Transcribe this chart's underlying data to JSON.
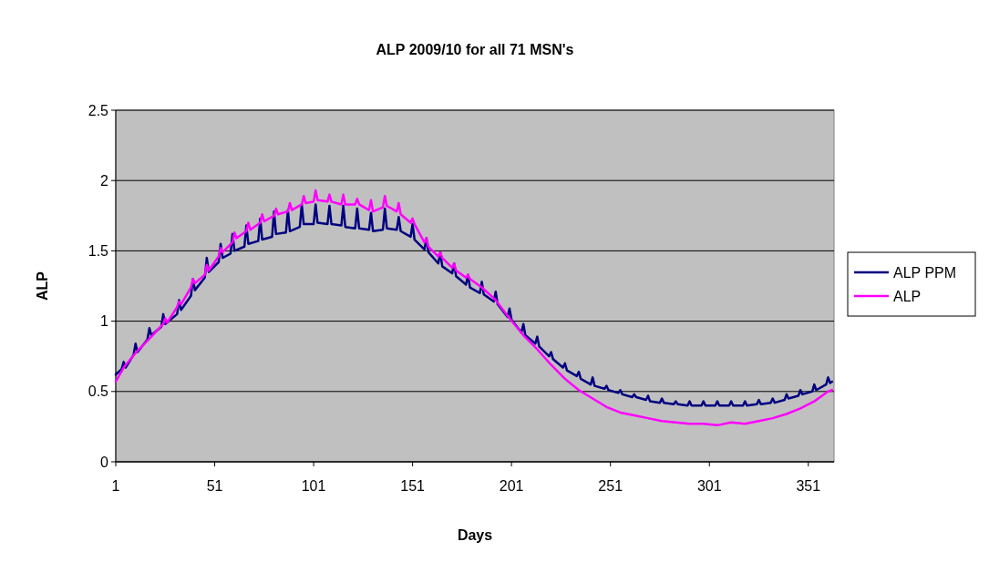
{
  "chart_data": {
    "type": "line",
    "title": "ALP 2009/10 for all 71 MSN's",
    "xlabel": "Days",
    "ylabel": "ALP",
    "xlim": [
      1,
      364
    ],
    "xticks": [
      1,
      51,
      101,
      151,
      201,
      251,
      301,
      351
    ],
    "ylim": [
      0,
      2.5
    ],
    "yticks": [
      0,
      0.5,
      1,
      1.5,
      2,
      2.5
    ],
    "grid": "y",
    "legend": "right",
    "marker": "none",
    "line_style": "solid",
    "series": [
      {
        "name": "ALP PPM",
        "color": "#000080",
        "x": [
          1,
          4,
          5,
          6,
          10,
          11,
          12,
          17,
          18,
          19,
          24,
          25,
          26,
          32,
          33,
          34,
          39,
          40,
          41,
          46,
          47,
          48,
          53,
          54,
          55,
          59,
          60,
          61,
          66,
          67,
          68,
          73,
          74,
          75,
          80,
          81,
          82,
          87,
          88,
          89,
          94,
          95,
          96,
          101,
          102,
          103,
          108,
          109,
          110,
          115,
          116,
          117,
          122,
          123,
          124,
          129,
          130,
          131,
          136,
          137,
          138,
          143,
          144,
          145,
          150,
          151,
          152,
          157,
          158,
          159,
          164,
          165,
          166,
          171,
          172,
          173,
          178,
          179,
          180,
          185,
          186,
          187,
          192,
          193,
          194,
          199,
          200,
          201,
          206,
          207,
          208,
          213,
          214,
          215,
          220,
          221,
          222,
          227,
          228,
          229,
          234,
          235,
          236,
          241,
          242,
          243,
          248,
          249,
          250,
          255,
          256,
          257,
          262,
          263,
          264,
          269,
          270,
          271,
          276,
          277,
          278,
          283,
          284,
          285,
          290,
          291,
          292,
          297,
          298,
          299,
          304,
          305,
          306,
          311,
          312,
          313,
          318,
          319,
          320,
          325,
          326,
          327,
          332,
          333,
          334,
          339,
          340,
          341,
          346,
          347,
          348,
          353,
          354,
          355,
          360,
          361,
          362,
          363
        ],
        "values": [
          0.62,
          0.66,
          0.71,
          0.67,
          0.76,
          0.84,
          0.78,
          0.87,
          0.95,
          0.9,
          0.96,
          1.05,
          0.98,
          1.05,
          1.15,
          1.08,
          1.18,
          1.3,
          1.22,
          1.31,
          1.45,
          1.35,
          1.42,
          1.55,
          1.45,
          1.48,
          1.62,
          1.5,
          1.53,
          1.68,
          1.55,
          1.57,
          1.73,
          1.58,
          1.6,
          1.78,
          1.62,
          1.63,
          1.79,
          1.64,
          1.67,
          1.83,
          1.69,
          1.69,
          1.83,
          1.7,
          1.69,
          1.82,
          1.69,
          1.68,
          1.82,
          1.67,
          1.66,
          1.8,
          1.66,
          1.65,
          1.77,
          1.64,
          1.65,
          1.8,
          1.66,
          1.65,
          1.74,
          1.64,
          1.6,
          1.69,
          1.58,
          1.51,
          1.59,
          1.49,
          1.41,
          1.49,
          1.39,
          1.34,
          1.41,
          1.32,
          1.26,
          1.33,
          1.24,
          1.2,
          1.28,
          1.19,
          1.14,
          1.21,
          1.12,
          1.03,
          1.09,
          1.01,
          0.92,
          0.98,
          0.9,
          0.84,
          0.89,
          0.82,
          0.75,
          0.78,
          0.73,
          0.67,
          0.7,
          0.65,
          0.61,
          0.64,
          0.59,
          0.55,
          0.6,
          0.54,
          0.52,
          0.54,
          0.51,
          0.49,
          0.51,
          0.48,
          0.46,
          0.48,
          0.46,
          0.44,
          0.47,
          0.43,
          0.42,
          0.45,
          0.42,
          0.41,
          0.43,
          0.41,
          0.4,
          0.43,
          0.4,
          0.4,
          0.43,
          0.4,
          0.4,
          0.43,
          0.4,
          0.4,
          0.43,
          0.4,
          0.4,
          0.43,
          0.4,
          0.41,
          0.44,
          0.41,
          0.42,
          0.45,
          0.42,
          0.44,
          0.48,
          0.45,
          0.47,
          0.51,
          0.48,
          0.5,
          0.55,
          0.51,
          0.55,
          0.6,
          0.56,
          0.57
        ]
      },
      {
        "name": "ALP",
        "color": "#ff00ff",
        "x": [
          1,
          5,
          12,
          19,
          25,
          26,
          27,
          32,
          33,
          34,
          39,
          40,
          41,
          46,
          47,
          48,
          53,
          54,
          55,
          60,
          61,
          62,
          67,
          68,
          69,
          74,
          75,
          76,
          81,
          82,
          83,
          88,
          89,
          90,
          95,
          96,
          97,
          101,
          102,
          103,
          108,
          109,
          110,
          115,
          116,
          117,
          122,
          123,
          124,
          129,
          130,
          131,
          136,
          137,
          138,
          143,
          144,
          145,
          150,
          151,
          152,
          157,
          158,
          159,
          164,
          165,
          166,
          171,
          172,
          173,
          178,
          179,
          180,
          186,
          193,
          200,
          207,
          214,
          221,
          228,
          235,
          242,
          249,
          256,
          263,
          270,
          277,
          284,
          291,
          298,
          305,
          312,
          319,
          326,
          333,
          340,
          347,
          354,
          361,
          363
        ],
        "values": [
          0.57,
          0.67,
          0.79,
          0.89,
          0.98,
          1.02,
          0.99,
          1.1,
          1.14,
          1.12,
          1.24,
          1.3,
          1.27,
          1.33,
          1.4,
          1.36,
          1.46,
          1.52,
          1.49,
          1.56,
          1.63,
          1.59,
          1.64,
          1.7,
          1.65,
          1.7,
          1.76,
          1.71,
          1.75,
          1.8,
          1.76,
          1.78,
          1.84,
          1.79,
          1.83,
          1.89,
          1.84,
          1.85,
          1.93,
          1.86,
          1.85,
          1.9,
          1.85,
          1.83,
          1.9,
          1.83,
          1.83,
          1.87,
          1.83,
          1.79,
          1.86,
          1.78,
          1.81,
          1.89,
          1.82,
          1.78,
          1.84,
          1.76,
          1.7,
          1.73,
          1.69,
          1.56,
          1.59,
          1.53,
          1.46,
          1.49,
          1.45,
          1.38,
          1.41,
          1.36,
          1.31,
          1.33,
          1.3,
          1.24,
          1.15,
          1.02,
          0.9,
          0.8,
          0.69,
          0.59,
          0.51,
          0.45,
          0.39,
          0.35,
          0.33,
          0.31,
          0.29,
          0.28,
          0.27,
          0.27,
          0.26,
          0.28,
          0.27,
          0.29,
          0.31,
          0.34,
          0.38,
          0.43,
          0.5,
          0.51
        ]
      }
    ]
  }
}
